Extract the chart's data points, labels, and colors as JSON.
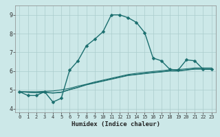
{
  "xlabel": "Humidex (Indice chaleur)",
  "xlim": [
    -0.5,
    23.5
  ],
  "ylim": [
    3.8,
    9.5
  ],
  "xticks": [
    0,
    1,
    2,
    3,
    4,
    5,
    6,
    7,
    8,
    9,
    10,
    11,
    12,
    13,
    14,
    15,
    16,
    17,
    18,
    19,
    20,
    21,
    22,
    23
  ],
  "yticks": [
    4,
    5,
    6,
    7,
    8,
    9
  ],
  "background_color": "#cce8e8",
  "grid_color": "#aacccc",
  "line_color": "#1a6e6e",
  "lines": [
    {
      "x": [
        0,
        1,
        2,
        3,
        4,
        5,
        6,
        7,
        8,
        9,
        10,
        11,
        12,
        13,
        14,
        15,
        16,
        17,
        18,
        19,
        20,
        21,
        22,
        23
      ],
      "y": [
        4.9,
        4.7,
        4.7,
        4.9,
        4.35,
        4.55,
        6.05,
        6.55,
        7.35,
        7.7,
        8.1,
        9.0,
        9.0,
        8.85,
        8.6,
        8.05,
        6.7,
        6.55,
        6.1,
        6.05,
        6.6,
        6.55,
        6.1,
        6.1
      ],
      "marker": "D",
      "markersize": 2.5,
      "linewidth": 1.0
    },
    {
      "x": [
        0,
        1,
        2,
        3,
        4,
        5,
        6,
        7,
        8,
        9,
        10,
        11,
        12,
        13,
        14,
        15,
        16,
        17,
        18,
        19,
        20,
        21,
        22,
        23
      ],
      "y": [
        4.9,
        4.9,
        4.9,
        4.92,
        4.94,
        5.0,
        5.08,
        5.2,
        5.3,
        5.42,
        5.52,
        5.62,
        5.72,
        5.82,
        5.88,
        5.93,
        5.98,
        6.02,
        6.07,
        6.08,
        6.12,
        6.17,
        6.17,
        6.17
      ],
      "marker": null,
      "linewidth": 0.8
    },
    {
      "x": [
        0,
        1,
        2,
        3,
        4,
        5,
        6,
        7,
        8,
        9,
        10,
        11,
        12,
        13,
        14,
        15,
        16,
        17,
        18,
        19,
        20,
        21,
        22,
        23
      ],
      "y": [
        4.9,
        4.88,
        4.86,
        4.88,
        4.84,
        4.88,
        5.02,
        5.14,
        5.28,
        5.38,
        5.48,
        5.58,
        5.68,
        5.78,
        5.83,
        5.88,
        5.93,
        5.97,
        6.02,
        6.02,
        6.07,
        6.12,
        6.12,
        6.12
      ],
      "marker": null,
      "linewidth": 0.8
    },
    {
      "x": [
        0,
        1,
        2,
        3,
        4,
        5,
        6,
        7,
        8,
        9,
        10,
        11,
        12,
        13,
        14,
        15,
        16,
        17,
        18,
        19,
        20,
        21,
        22,
        23
      ],
      "y": [
        4.9,
        4.86,
        4.84,
        4.86,
        4.82,
        4.86,
        5.0,
        5.12,
        5.26,
        5.36,
        5.46,
        5.56,
        5.66,
        5.76,
        5.81,
        5.86,
        5.91,
        5.95,
        6.0,
        6.0,
        6.05,
        6.1,
        6.1,
        6.1
      ],
      "marker": null,
      "linewidth": 0.7
    }
  ]
}
